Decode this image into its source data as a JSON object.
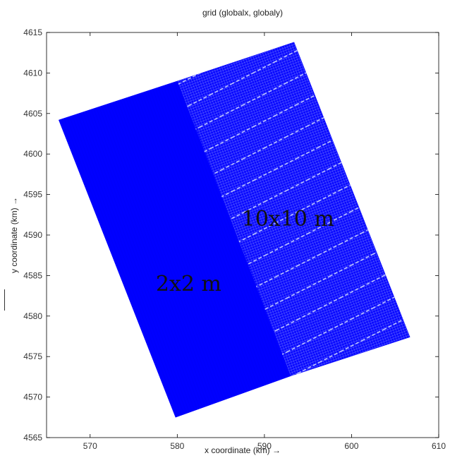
{
  "chart_data": {
    "type": "mesh",
    "title": "grid (globalx, globaly)",
    "xlabel": "x coordinate (km) →",
    "ylabel": "y coordinate (km) →",
    "xlim": [
      565,
      610
    ],
    "ylim": [
      4565,
      4615
    ],
    "xticks": [
      570,
      580,
      590,
      600,
      610
    ],
    "yticks": [
      4565,
      4570,
      4575,
      4580,
      4585,
      4590,
      4595,
      4600,
      4605,
      4610,
      4615
    ],
    "grid": false,
    "mesh_color": "#0000ff",
    "outline": [
      {
        "x": 566.4,
        "y": 4604.2
      },
      {
        "x": 593.4,
        "y": 4613.8
      },
      {
        "x": 606.7,
        "y": 4577.4
      },
      {
        "x": 579.8,
        "y": 4567.5
      }
    ],
    "regions": [
      {
        "label": "2x2 m",
        "corners": [
          {
            "x": 566.4,
            "y": 4604.2
          },
          {
            "x": 580.0,
            "y": 4609.0
          },
          {
            "x": 593.0,
            "y": 4572.6
          },
          {
            "x": 579.8,
            "y": 4567.5
          }
        ],
        "label_pos": {
          "x": 581.3,
          "y": 4584.0
        }
      },
      {
        "label": "10x10 m",
        "corners": [
          {
            "x": 580.0,
            "y": 4609.0
          },
          {
            "x": 593.4,
            "y": 4613.8
          },
          {
            "x": 606.7,
            "y": 4577.4
          },
          {
            "x": 593.0,
            "y": 4572.6
          }
        ],
        "label_pos": {
          "x": 592.7,
          "y": 4592.0
        }
      }
    ]
  }
}
